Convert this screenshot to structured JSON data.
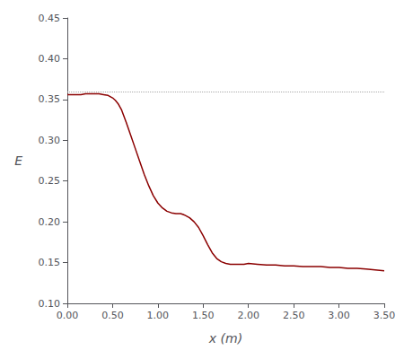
{
  "chart_data": {
    "type": "line",
    "xlabel": "x (m)",
    "ylabel": "E",
    "color": "#8B0000",
    "grid": false,
    "xlim": [
      0.0,
      3.5
    ],
    "ylim": [
      0.1,
      0.45
    ],
    "xticks": [
      {
        "value": 0.0,
        "label": "0.00"
      },
      {
        "value": 0.5,
        "label": "0.50"
      },
      {
        "value": 1.0,
        "label": "1.00"
      },
      {
        "value": 1.5,
        "label": "1.50"
      },
      {
        "value": 2.0,
        "label": "2.00"
      },
      {
        "value": 2.5,
        "label": "2.50"
      },
      {
        "value": 3.0,
        "label": "3.00"
      },
      {
        "value": 3.5,
        "label": "3.50"
      }
    ],
    "yticks": [
      {
        "value": 0.1,
        "label": "0.10"
      },
      0.15,
      {
        "value": 0.2,
        "label": "0.20"
      },
      0.25,
      {
        "value": 0.3,
        "label": "0.30"
      },
      0.35,
      {
        "value": 0.4,
        "label": "0.40"
      },
      0.45
    ],
    "reference_line": {
      "y": 0.356,
      "color": "#aaaaaa",
      "line_style": "dotted"
    },
    "x": [
      0.0,
      0.05,
      0.1,
      0.15,
      0.2,
      0.25,
      0.3,
      0.35,
      0.4,
      0.45,
      0.5,
      0.53,
      0.56,
      0.6,
      0.65,
      0.7,
      0.75,
      0.8,
      0.85,
      0.9,
      0.95,
      1.0,
      1.05,
      1.1,
      1.15,
      1.2,
      1.25,
      1.28,
      1.3,
      1.35,
      1.4,
      1.45,
      1.5,
      1.55,
      1.6,
      1.65,
      1.7,
      1.75,
      1.8,
      1.85,
      1.9,
      1.95,
      2.0,
      2.1,
      2.2,
      2.3,
      2.4,
      2.5,
      2.6,
      2.7,
      2.8,
      2.9,
      3.0,
      3.1,
      3.2,
      3.3,
      3.4,
      3.5
    ],
    "values": [
      0.356,
      0.356,
      0.356,
      0.356,
      0.357,
      0.357,
      0.357,
      0.357,
      0.356,
      0.355,
      0.352,
      0.349,
      0.345,
      0.337,
      0.322,
      0.306,
      0.29,
      0.274,
      0.258,
      0.244,
      0.232,
      0.223,
      0.217,
      0.213,
      0.211,
      0.21,
      0.21,
      0.209,
      0.208,
      0.205,
      0.2,
      0.193,
      0.183,
      0.172,
      0.162,
      0.155,
      0.151,
      0.149,
      0.148,
      0.148,
      0.148,
      0.148,
      0.149,
      0.148,
      0.147,
      0.147,
      0.146,
      0.146,
      0.145,
      0.145,
      0.145,
      0.144,
      0.144,
      0.143,
      0.143,
      0.142,
      0.141,
      0.14
    ]
  }
}
